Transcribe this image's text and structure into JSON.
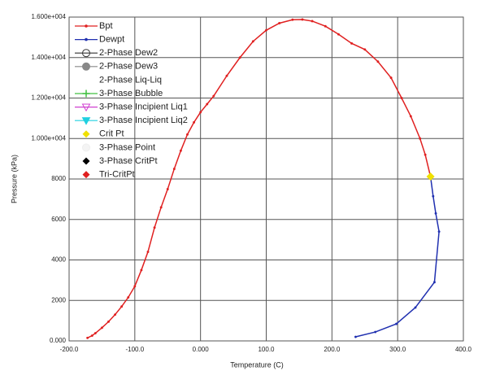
{
  "chart_data": {
    "type": "line",
    "xlabel": "Temperature (C)",
    "ylabel": "Pressure (kPa)",
    "xlim": [
      -200,
      400
    ],
    "ylim": [
      0,
      16000
    ],
    "xticks": [
      {
        "value": -200,
        "label": "-200.0"
      },
      {
        "value": -100,
        "label": "-100.0"
      },
      {
        "value": 0,
        "label": "0.000"
      },
      {
        "value": 100,
        "label": "100.0"
      },
      {
        "value": 200,
        "label": "200.0"
      },
      {
        "value": 300,
        "label": "300.0"
      },
      {
        "value": 400,
        "label": "400.0"
      }
    ],
    "yticks": [
      {
        "value": 0,
        "label": "0.000"
      },
      2000,
      4000,
      6000,
      8000,
      {
        "value": 10000,
        "label": "1.000e+004"
      },
      {
        "value": 12000,
        "label": "1.200e+004"
      },
      {
        "value": 14000,
        "label": "1.400e+004"
      },
      {
        "value": 16000,
        "label": "1.600e+004"
      }
    ],
    "grid": true,
    "legend": "upper left",
    "series": [
      {
        "name": "Bpt",
        "color": "#e02020",
        "marker": "dot",
        "line": true,
        "x": [
          -172,
          -165,
          -160,
          -150,
          -140,
          -130,
          -120,
          -110,
          -100,
          -90,
          -80,
          -70,
          -60,
          -50,
          -40,
          -30,
          -20,
          -10,
          0,
          10,
          20,
          40,
          60,
          80,
          100,
          120,
          140,
          155,
          170,
          190,
          210,
          230,
          250,
          270,
          290,
          306,
          320,
          334,
          342,
          350
        ],
        "values": [
          150,
          260,
          380,
          650,
          950,
          1300,
          1700,
          2150,
          2700,
          3500,
          4400,
          5600,
          6600,
          7500,
          8500,
          9400,
          10200,
          10800,
          11300,
          11700,
          12100,
          13100,
          14000,
          14800,
          15350,
          15700,
          15870,
          15880,
          15800,
          15550,
          15150,
          14700,
          14400,
          13800,
          13000,
          12000,
          11100,
          10000,
          9200,
          8120
        ]
      },
      {
        "name": "Dewpt",
        "color": "#2030b0",
        "marker": "dot",
        "line": true,
        "x": [
          350,
          354,
          358,
          363,
          356,
          327,
          298,
          266,
          236
        ],
        "values": [
          8120,
          7150,
          6300,
          5400,
          2900,
          1650,
          840,
          440,
          200
        ]
      },
      {
        "name": "2-Phase Dew2",
        "color": "#333333",
        "marker": "circle-open",
        "line": true,
        "x": [],
        "values": []
      },
      {
        "name": "2-Phase Dew3",
        "color": "#888888",
        "marker": "circle",
        "line": true,
        "x": [],
        "values": []
      },
      {
        "name": "2-Phase Liq-Liq",
        "color": "#ffffff",
        "marker": "none",
        "line": false,
        "x": [],
        "values": []
      },
      {
        "name": "3-Phase Bubble",
        "color": "#40c040",
        "marker": "plus",
        "line": true,
        "x": [],
        "values": []
      },
      {
        "name": "3-Phase Incipient Liq1",
        "color": "#d040d0",
        "marker": "triangle-open",
        "line": true,
        "x": [],
        "values": []
      },
      {
        "name": "3-Phase Incipient Liq2",
        "color": "#20d0e0",
        "marker": "triangle",
        "line": true,
        "x": [],
        "values": []
      },
      {
        "name": "Crit Pt",
        "color": "#f0e000",
        "marker": "diamond",
        "line": false,
        "x": [
          350
        ],
        "values": [
          8120
        ]
      },
      {
        "name": "3-Phase Point",
        "color": "#f4f4f4",
        "marker": "circle",
        "line": false,
        "x": [],
        "values": []
      },
      {
        "name": "3-Phase CritPt",
        "color": "#000000",
        "marker": "diamond",
        "line": false,
        "x": [],
        "values": []
      },
      {
        "name": "Tri-CritPt",
        "color": "#e02020",
        "marker": "diamond",
        "line": false,
        "x": [],
        "values": []
      }
    ]
  }
}
